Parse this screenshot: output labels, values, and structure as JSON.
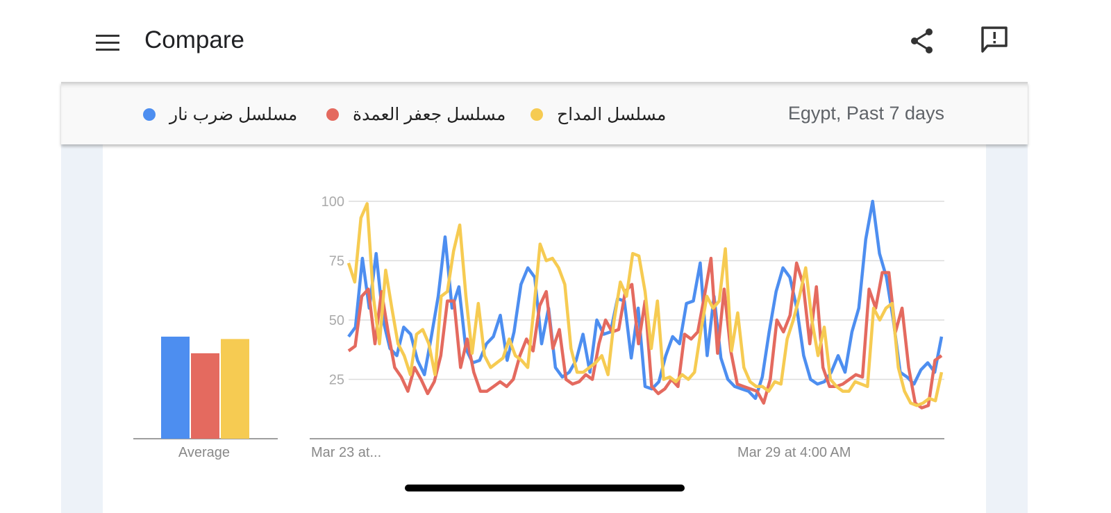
{
  "header": {
    "title": "Compare",
    "menu_icon": "hamburger-menu-icon",
    "share_icon": "share-icon",
    "feedback_icon": "feedback-icon"
  },
  "legend": {
    "items": [
      {
        "label": "مسلسل ضرب نار",
        "color": "#4d8ef0"
      },
      {
        "label": "مسلسل جعفر العمدة",
        "color": "#e46a5f"
      },
      {
        "label": "مسلسل المداح",
        "color": "#f6cb52"
      }
    ],
    "region": "Egypt, Past 7 days"
  },
  "chart_data": [
    {
      "type": "bar",
      "categories": [
        "Average"
      ],
      "series": [
        {
          "name": "مسلسل ضرب نار",
          "values": [
            43
          ]
        },
        {
          "name": "مسلسل جعفر العمدة",
          "values": [
            36
          ]
        },
        {
          "name": "مسلسل المداح",
          "values": [
            42
          ]
        }
      ],
      "ylim": [
        0,
        100
      ]
    },
    {
      "type": "line",
      "ylim": [
        0,
        100
      ],
      "yticks": [
        25,
        50,
        75,
        100
      ],
      "xtick_labels": [
        "Mar 23 at...",
        "Mar 29 at 4:00 AM"
      ],
      "grid": true,
      "series": [
        {
          "name": "مسلسل ضرب نار",
          "color": "#4d8ef0",
          "values": [
            43,
            47,
            76,
            55,
            78,
            50,
            38,
            35,
            47,
            44,
            33,
            27,
            43,
            60,
            85,
            55,
            64,
            38,
            32,
            33,
            40,
            43,
            52,
            33,
            45,
            65,
            72,
            68,
            40,
            55,
            30,
            26,
            28,
            33,
            44,
            28,
            50,
            44,
            45,
            59,
            58,
            34,
            55,
            22,
            21,
            24,
            35,
            43,
            40,
            57,
            58,
            74,
            35,
            60,
            34,
            25,
            22,
            21,
            20,
            17,
            26,
            45,
            62,
            72,
            68,
            55,
            35,
            25,
            23,
            24,
            28,
            35,
            28,
            45,
            55,
            84,
            100,
            78,
            68,
            50,
            28,
            26,
            23,
            29,
            32,
            28,
            43
          ]
        },
        {
          "name": "مسلسل جعفر العمدة",
          "color": "#e46a5f",
          "values": [
            37,
            39,
            60,
            63,
            40,
            62,
            45,
            30,
            26,
            20,
            30,
            25,
            19,
            24,
            35,
            58,
            58,
            30,
            42,
            28,
            20,
            20,
            22,
            24,
            22,
            25,
            35,
            42,
            37,
            56,
            62,
            38,
            46,
            25,
            23,
            24,
            27,
            25,
            40,
            50,
            45,
            46,
            62,
            65,
            40,
            58,
            22,
            19,
            21,
            25,
            22,
            44,
            42,
            45,
            60,
            76,
            36,
            63,
            37,
            23,
            22,
            21,
            20,
            15,
            25,
            50,
            45,
            52,
            74,
            65,
            40,
            64,
            30,
            22,
            22,
            23,
            25,
            27,
            26,
            63,
            55,
            70,
            70,
            45,
            55,
            30,
            15,
            13,
            14,
            33,
            35
          ]
        },
        {
          "name": "مسلسل المداح",
          "color": "#f6cb52",
          "values": [
            74,
            66,
            93,
            99,
            60,
            40,
            71,
            55,
            40,
            35,
            27,
            44,
            46,
            40,
            27,
            60,
            62,
            79,
            90,
            60,
            36,
            57,
            35,
            30,
            32,
            34,
            42,
            35,
            33,
            30,
            55,
            82,
            75,
            76,
            72,
            65,
            38,
            28,
            28,
            30,
            32,
            35,
            27,
            50,
            66,
            60,
            78,
            77,
            62,
            38,
            58,
            25,
            26,
            24,
            27,
            25,
            28,
            45,
            60,
            55,
            58,
            80,
            37,
            53,
            30,
            24,
            22,
            22,
            20,
            24,
            23,
            42,
            50,
            60,
            72,
            50,
            35,
            47,
            25,
            22,
            20,
            20,
            24,
            23,
            22,
            55,
            50,
            55,
            57,
            30,
            20,
            15,
            14,
            15,
            17,
            16,
            28
          ]
        }
      ]
    }
  ]
}
